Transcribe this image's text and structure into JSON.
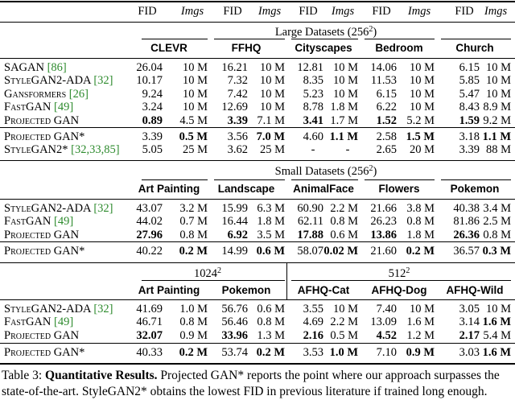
{
  "header_row": [
    "FID",
    "Imgs",
    "FID",
    "Imgs",
    "FID",
    "Imgs",
    "FID",
    "Imgs",
    "FID",
    "Imgs"
  ],
  "large": {
    "title": "Large Datasets (256",
    "sup": "2",
    "title_close": ")",
    "datasets": [
      "CLEVR",
      "FFHQ",
      "Cityscapes",
      "Bedroom",
      "Church"
    ],
    "rows": [
      {
        "label": "SAGAN",
        "cite": "[86]",
        "vals": [
          "26.04",
          "10 M",
          "16.21",
          "10 M",
          "12.81",
          "10 M",
          "14.06",
          "10 M",
          "6.15",
          "10 M"
        ],
        "bold": []
      },
      {
        "label": "StyleGAN2-ADA",
        "cite": "[32]",
        "vals": [
          "10.17",
          "10 M",
          "7.32",
          "10 M",
          "8.35",
          "10 M",
          "11.53",
          "10 M",
          "5.85",
          "10 M"
        ],
        "bold": []
      },
      {
        "label": "Gansformers",
        "cite": "[26]",
        "vals": [
          "9.24",
          "10 M",
          "7.42",
          "10 M",
          "5.23",
          "10 M",
          "6.15",
          "10 M",
          "5.47",
          "10 M"
        ],
        "bold": []
      },
      {
        "label": "FastGAN",
        "cite": "[49]",
        "vals": [
          "3.24",
          "10 M",
          "12.69",
          "10 M",
          "8.78",
          "1.8 M",
          "6.22",
          "10 M",
          "8.43",
          "8.9 M"
        ],
        "bold": []
      },
      {
        "label": "Projected GAN",
        "cite": "",
        "vals": [
          "0.89",
          "4.5 M",
          "3.39",
          "7.1 M",
          "3.41",
          "1.7 M",
          "1.52",
          "5.2 M",
          "1.59",
          "9.2 M"
        ],
        "bold": [
          0,
          2,
          4,
          6,
          8
        ]
      }
    ],
    "rows2": [
      {
        "label": "Projected GAN*",
        "cite": "",
        "vals": [
          "3.39",
          "0.5 M",
          "3.56",
          "7.0 M",
          "4.60",
          "1.1 M",
          "2.58",
          "1.5 M",
          "3.18",
          "1.1 M"
        ],
        "bold": [
          1,
          3,
          5,
          7,
          9
        ]
      },
      {
        "label": "StyleGAN2*",
        "cite": "[32,33,85]",
        "vals": [
          "5.05",
          "25 M",
          "3.62",
          "25 M",
          "-",
          "-",
          "2.65",
          "20 M",
          "3.39",
          "88 M"
        ],
        "bold": []
      }
    ]
  },
  "small": {
    "title": "Small Datasets (256",
    "sup": "2",
    "title_close": ")",
    "datasets": [
      "Art Painting",
      "Landscape",
      "AnimalFace",
      "Flowers",
      "Pokemon"
    ],
    "rows": [
      {
        "label": "StyleGAN2-ADA",
        "cite": "[32]",
        "vals": [
          "43.07",
          "3.2 M",
          "15.99",
          "6.3 M",
          "60.90",
          "2.2 M",
          "21.66",
          "3.8 M",
          "40.38",
          "3.4 M"
        ],
        "bold": []
      },
      {
        "label": "FastGAN",
        "cite": "[49]",
        "vals": [
          "44.02",
          "0.7 M",
          "16.44",
          "1.8 M",
          "62.11",
          "0.8 M",
          "26.23",
          "0.8 M",
          "81.86",
          "2.5 M"
        ],
        "bold": []
      },
      {
        "label": "Projected GAN",
        "cite": "",
        "vals": [
          "27.96",
          "0.8 M",
          "6.92",
          "3.5 M",
          "17.88",
          "0.6 M",
          "13.86",
          "1.8 M",
          "26.36",
          "0.8 M"
        ],
        "bold": [
          0,
          2,
          4,
          6,
          8
        ]
      }
    ],
    "rows2": [
      {
        "label": "Projected GAN*",
        "cite": "",
        "vals": [
          "40.22",
          "0.2 M",
          "14.99",
          "0.6 M",
          "58.07",
          "0.02 M",
          "21.60",
          "0.2 M",
          "36.57",
          "0.3 M"
        ],
        "bold": [
          1,
          3,
          5,
          7,
          9
        ]
      }
    ]
  },
  "hires": {
    "g1": "1024",
    "g2": "512",
    "sup": "2",
    "datasets": [
      "Art Painting",
      "Pokemon",
      "AFHQ-Cat",
      "AFHQ-Dog",
      "AFHQ-Wild"
    ],
    "rows": [
      {
        "label": "StyleGAN2-ADA",
        "cite": "[32]",
        "vals": [
          "41.69",
          "1.0 M",
          "56.76",
          "0.6 M",
          "3.55",
          "10 M",
          "7.40",
          "10 M",
          "3.05",
          "10 M"
        ],
        "bold": []
      },
      {
        "label": "FastGAN",
        "cite": "[49]",
        "vals": [
          "46.71",
          "0.8 M",
          "56.46",
          "0.8 M",
          "4.69",
          "2.2 M",
          "13.09",
          "1.6 M",
          "3.14",
          "1.6 M"
        ],
        "bold": [
          9
        ]
      },
      {
        "label": "Projected GAN",
        "cite": "",
        "vals": [
          "32.07",
          "0.9 M",
          "33.96",
          "1.3 M",
          "2.16",
          "0.5 M",
          "4.52",
          "1.2 M",
          "2.17",
          "5.4 M"
        ],
        "bold": [
          0,
          2,
          4,
          6,
          8
        ]
      }
    ],
    "rows2": [
      {
        "label": "Projected GAN*",
        "cite": "",
        "vals": [
          "40.33",
          "0.2 M",
          "53.74",
          "0.2 M",
          "3.53",
          "1.0 M",
          "7.10",
          "0.9 M",
          "3.03",
          "1.6 M"
        ],
        "bold": [
          1,
          3,
          5,
          7,
          9
        ]
      }
    ]
  },
  "caption": {
    "prefix": "Table 3: ",
    "bold": "Quantitative Results.",
    "line1_rest": " Projected GAN* reports the point where our approach surpasses the",
    "line2": "state-of-the-art. StyleGAN2* obtains the lowest FID in previous literature if trained long enough."
  }
}
